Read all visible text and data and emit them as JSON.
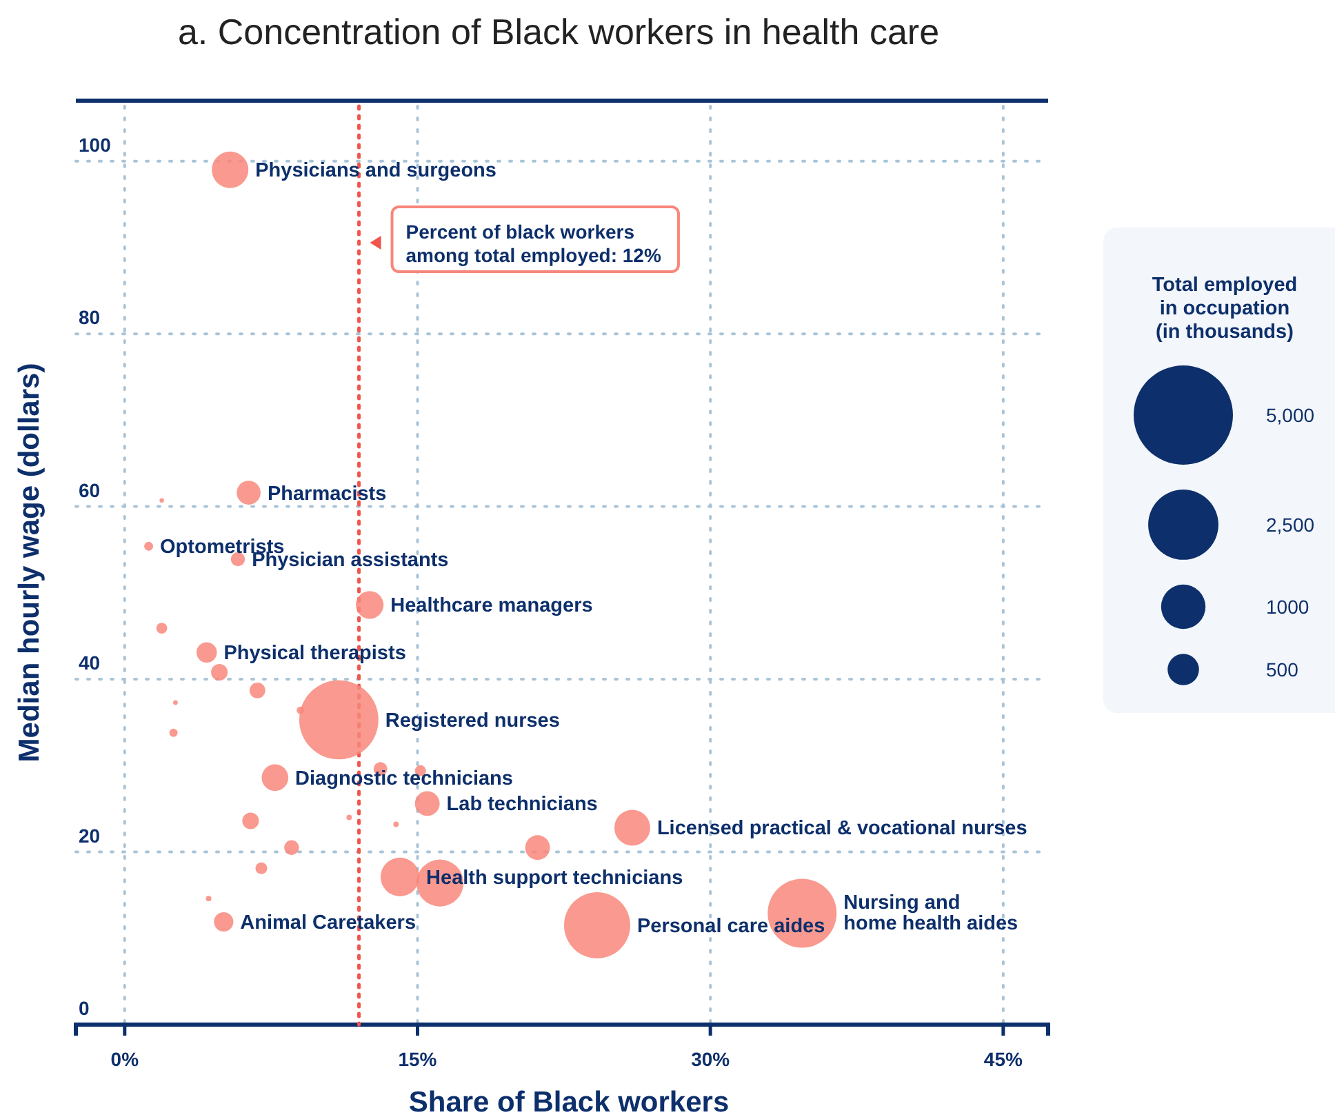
{
  "chart_data": {
    "type": "bubble",
    "title": "a. Concentration of Black workers in health care",
    "xlabel": "Share of Black workers",
    "ylabel": "Median hourly wage (dollars)",
    "legend_title": "Total employed\nin occupation\n(in thousands)",
    "legend": "right",
    "grid": true,
    "xlim": [
      -2.5,
      47.3
    ],
    "ylim": [
      0,
      107
    ],
    "xticks": [
      {
        "value": 0,
        "label": "0%"
      },
      {
        "value": 15,
        "label": "15%"
      },
      {
        "value": 30,
        "label": "30%"
      },
      {
        "value": 45,
        "label": "45%"
      }
    ],
    "yticks": [
      0,
      20,
      40,
      60,
      80,
      100
    ],
    "size_legend": [
      {
        "value": 5000,
        "label": "5,000"
      },
      {
        "value": 2500,
        "label": "2,500"
      },
      {
        "value": 1000,
        "label": "1000"
      },
      {
        "value": 500,
        "label": "500"
      }
    ],
    "series": [
      {
        "color": "#f8877b",
        "x": [
          5.4,
          1.9,
          6.35,
          1.23,
          5.8,
          12.55,
          1.9,
          4.2,
          4.85,
          6.8,
          2.6,
          2.5,
          9.0,
          10.97,
          7.7,
          13.1,
          15.15,
          15.5,
          6.45,
          11.5,
          13.9,
          8.55,
          7.0,
          4.3,
          5.07,
          14.1,
          16.15,
          21.15,
          26.0,
          24.2,
          34.7
        ],
        "values": [
          99.0,
          60.7,
          61.6,
          55.4,
          53.9,
          48.6,
          45.9,
          43.1,
          40.8,
          38.7,
          37.3,
          33.8,
          36.4,
          35.3,
          28.6,
          29.6,
          29.4,
          25.6,
          23.6,
          24.0,
          23.2,
          20.5,
          18.1,
          14.6,
          11.9,
          17.1,
          16.4,
          20.5,
          22.8,
          11.5,
          12.9
        ],
        "sizes": [
          680,
          10,
          290,
          40,
          100,
          390,
          60,
          210,
          140,
          125,
          11,
          35,
          28,
          3180,
          360,
          96,
          62,
          310,
          140,
          15,
          15,
          110,
          70,
          15,
          190,
          760,
          1120,
          310,
          650,
          2220,
          2410
        ]
      }
    ],
    "ref_lines": [
      {
        "axis": "x",
        "value": 12,
        "label": "Percent of black workers\namong total employed: 12%",
        "color": "#f0544a",
        "line_style": "dotted"
      }
    ],
    "annotations": [
      {
        "text": "Physicians and surgeons",
        "x": 5.4,
        "y": 99.0
      },
      {
        "text": "Pharmacists",
        "x": 6.35,
        "y": 61.6
      },
      {
        "text": "Optometrists",
        "x": 1.23,
        "y": 55.4
      },
      {
        "text": "Physician assistants",
        "x": 5.8,
        "y": 53.9
      },
      {
        "text": "Healthcare managers",
        "x": 12.55,
        "y": 48.6
      },
      {
        "text": "Physical therapists",
        "x": 4.2,
        "y": 43.1
      },
      {
        "text": "Registered nurses",
        "x": 10.97,
        "y": 35.3
      },
      {
        "text": "Diagnostic technicians",
        "x": 7.7,
        "y": 28.6
      },
      {
        "text": "Lab technicians",
        "x": 15.5,
        "y": 25.6
      },
      {
        "text": "Licensed practical & vocational nurses",
        "x": 26.0,
        "y": 22.8
      },
      {
        "text": "Health support technicians",
        "x": 14.1,
        "y": 17.1
      },
      {
        "text": "Animal Caretakers",
        "x": 5.07,
        "y": 11.9
      },
      {
        "text": "Personal care aides",
        "x": 24.2,
        "y": 11.5
      },
      {
        "text": "Nursing and\nhome health aides",
        "x": 34.7,
        "y": 12.9
      }
    ]
  }
}
